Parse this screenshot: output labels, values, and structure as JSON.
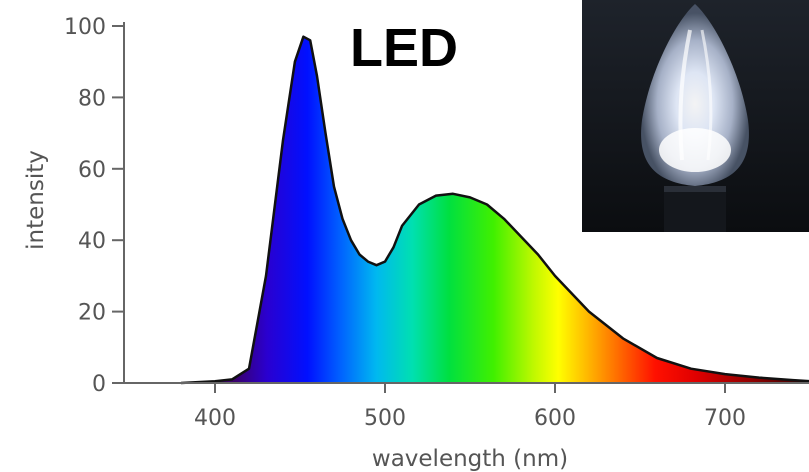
{
  "chart_data": {
    "type": "area",
    "title": "LED",
    "xlabel": "wavelength (nm)",
    "ylabel": "intensity",
    "xlim": [
      350,
      750
    ],
    "ylim": [
      0,
      100
    ],
    "x_ticks": [
      "400",
      "500",
      "600",
      "700"
    ],
    "y_ticks": [
      "0",
      "20",
      "40",
      "60",
      "80",
      "100"
    ],
    "grid": false,
    "legend": "none",
    "fill": "visible-spectrum gradient",
    "series": [
      {
        "x": [
          380,
          400,
          410,
          420,
          430,
          440,
          447,
          452,
          456,
          460,
          465,
          470,
          475,
          480,
          485,
          490,
          495,
          500,
          505,
          510,
          520,
          530,
          540,
          550,
          560,
          570,
          580,
          590,
          600,
          620,
          640,
          660,
          680,
          700,
          720,
          740,
          750
        ],
        "y": [
          0,
          0.5,
          1,
          4,
          30,
          68,
          90,
          97,
          96,
          86,
          70,
          55,
          46,
          40,
          36,
          34,
          33,
          34,
          38,
          44,
          50,
          52.5,
          53,
          52,
          50,
          46,
          41,
          36,
          30,
          20,
          12.5,
          7,
          4,
          2.5,
          1.5,
          0.8,
          0.5
        ]
      }
    ]
  },
  "inset_photo": {
    "icon": "led-bulb-photo"
  }
}
